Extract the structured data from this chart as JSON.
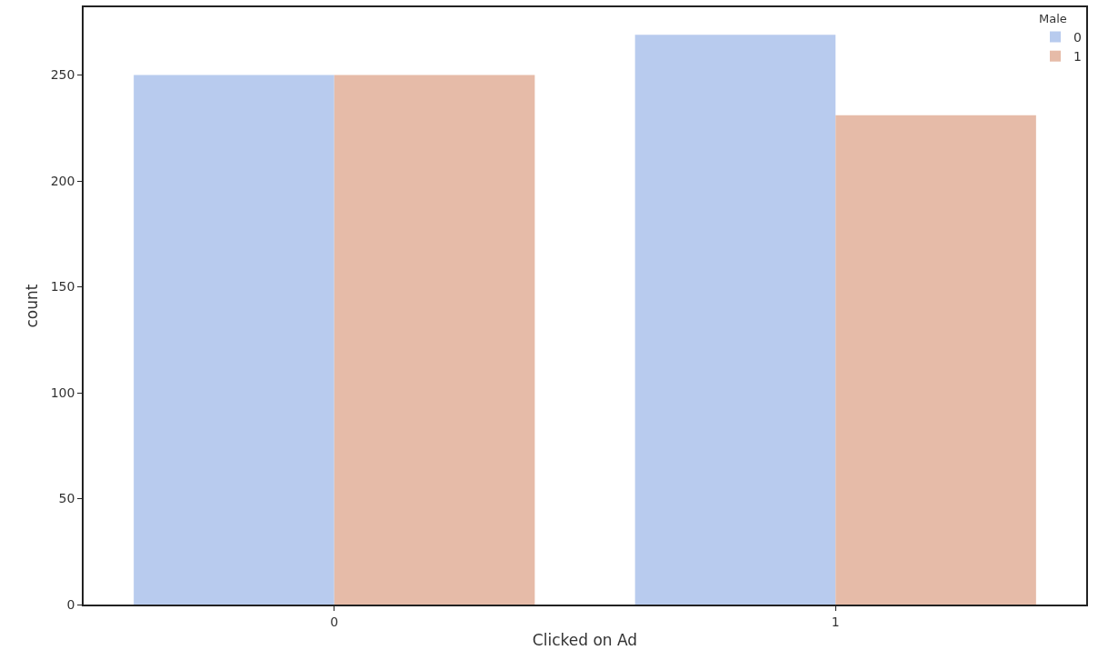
{
  "chart_data": {
    "type": "bar",
    "xlabel": "Clicked on Ad",
    "ylabel": "count",
    "legend_title": "Male",
    "categories": [
      "0",
      "1"
    ],
    "series": [
      {
        "name": "0",
        "color": "#b8cbee",
        "values": [
          250,
          269
        ]
      },
      {
        "name": "1",
        "color": "#e6bba8",
        "values": [
          250,
          231
        ]
      }
    ],
    "ylim": [
      0,
      282
    ],
    "yticks": [
      0,
      50,
      100,
      150,
      200,
      250
    ],
    "grid": false,
    "legend": "top right"
  }
}
